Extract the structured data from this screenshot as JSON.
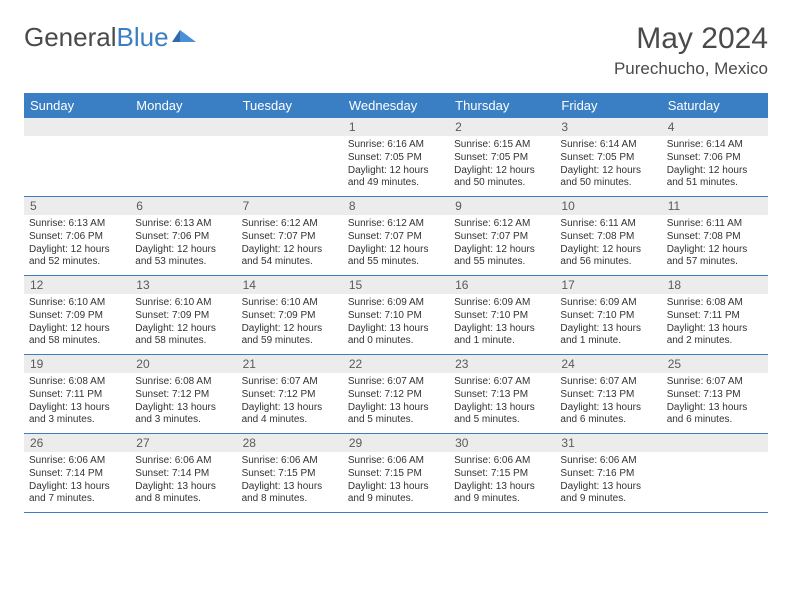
{
  "brand": {
    "part1": "General",
    "part2": "Blue"
  },
  "title": {
    "month": "May 2024",
    "location": "Purechucho, Mexico"
  },
  "colors": {
    "header_bg": "#3a7fc4",
    "header_fg": "#ffffff",
    "daynum_bg": "#ececec",
    "row_border": "#3a7fc4",
    "text": "#333333",
    "title_text": "#4a4a4a"
  },
  "weekdays": [
    "Sunday",
    "Monday",
    "Tuesday",
    "Wednesday",
    "Thursday",
    "Friday",
    "Saturday"
  ],
  "weeks": [
    [
      null,
      null,
      null,
      {
        "n": "1",
        "sr": "6:16 AM",
        "ss": "7:05 PM",
        "d1": "Daylight: 12 hours",
        "d2": "and 49 minutes."
      },
      {
        "n": "2",
        "sr": "6:15 AM",
        "ss": "7:05 PM",
        "d1": "Daylight: 12 hours",
        "d2": "and 50 minutes."
      },
      {
        "n": "3",
        "sr": "6:14 AM",
        "ss": "7:05 PM",
        "d1": "Daylight: 12 hours",
        "d2": "and 50 minutes."
      },
      {
        "n": "4",
        "sr": "6:14 AM",
        "ss": "7:06 PM",
        "d1": "Daylight: 12 hours",
        "d2": "and 51 minutes."
      }
    ],
    [
      {
        "n": "5",
        "sr": "6:13 AM",
        "ss": "7:06 PM",
        "d1": "Daylight: 12 hours",
        "d2": "and 52 minutes."
      },
      {
        "n": "6",
        "sr": "6:13 AM",
        "ss": "7:06 PM",
        "d1": "Daylight: 12 hours",
        "d2": "and 53 minutes."
      },
      {
        "n": "7",
        "sr": "6:12 AM",
        "ss": "7:07 PM",
        "d1": "Daylight: 12 hours",
        "d2": "and 54 minutes."
      },
      {
        "n": "8",
        "sr": "6:12 AM",
        "ss": "7:07 PM",
        "d1": "Daylight: 12 hours",
        "d2": "and 55 minutes."
      },
      {
        "n": "9",
        "sr": "6:12 AM",
        "ss": "7:07 PM",
        "d1": "Daylight: 12 hours",
        "d2": "and 55 minutes."
      },
      {
        "n": "10",
        "sr": "6:11 AM",
        "ss": "7:08 PM",
        "d1": "Daylight: 12 hours",
        "d2": "and 56 minutes."
      },
      {
        "n": "11",
        "sr": "6:11 AM",
        "ss": "7:08 PM",
        "d1": "Daylight: 12 hours",
        "d2": "and 57 minutes."
      }
    ],
    [
      {
        "n": "12",
        "sr": "6:10 AM",
        "ss": "7:09 PM",
        "d1": "Daylight: 12 hours",
        "d2": "and 58 minutes."
      },
      {
        "n": "13",
        "sr": "6:10 AM",
        "ss": "7:09 PM",
        "d1": "Daylight: 12 hours",
        "d2": "and 58 minutes."
      },
      {
        "n": "14",
        "sr": "6:10 AM",
        "ss": "7:09 PM",
        "d1": "Daylight: 12 hours",
        "d2": "and 59 minutes."
      },
      {
        "n": "15",
        "sr": "6:09 AM",
        "ss": "7:10 PM",
        "d1": "Daylight: 13 hours",
        "d2": "and 0 minutes."
      },
      {
        "n": "16",
        "sr": "6:09 AM",
        "ss": "7:10 PM",
        "d1": "Daylight: 13 hours",
        "d2": "and 1 minute."
      },
      {
        "n": "17",
        "sr": "6:09 AM",
        "ss": "7:10 PM",
        "d1": "Daylight: 13 hours",
        "d2": "and 1 minute."
      },
      {
        "n": "18",
        "sr": "6:08 AM",
        "ss": "7:11 PM",
        "d1": "Daylight: 13 hours",
        "d2": "and 2 minutes."
      }
    ],
    [
      {
        "n": "19",
        "sr": "6:08 AM",
        "ss": "7:11 PM",
        "d1": "Daylight: 13 hours",
        "d2": "and 3 minutes."
      },
      {
        "n": "20",
        "sr": "6:08 AM",
        "ss": "7:12 PM",
        "d1": "Daylight: 13 hours",
        "d2": "and 3 minutes."
      },
      {
        "n": "21",
        "sr": "6:07 AM",
        "ss": "7:12 PM",
        "d1": "Daylight: 13 hours",
        "d2": "and 4 minutes."
      },
      {
        "n": "22",
        "sr": "6:07 AM",
        "ss": "7:12 PM",
        "d1": "Daylight: 13 hours",
        "d2": "and 5 minutes."
      },
      {
        "n": "23",
        "sr": "6:07 AM",
        "ss": "7:13 PM",
        "d1": "Daylight: 13 hours",
        "d2": "and 5 minutes."
      },
      {
        "n": "24",
        "sr": "6:07 AM",
        "ss": "7:13 PM",
        "d1": "Daylight: 13 hours",
        "d2": "and 6 minutes."
      },
      {
        "n": "25",
        "sr": "6:07 AM",
        "ss": "7:13 PM",
        "d1": "Daylight: 13 hours",
        "d2": "and 6 minutes."
      }
    ],
    [
      {
        "n": "26",
        "sr": "6:06 AM",
        "ss": "7:14 PM",
        "d1": "Daylight: 13 hours",
        "d2": "and 7 minutes."
      },
      {
        "n": "27",
        "sr": "6:06 AM",
        "ss": "7:14 PM",
        "d1": "Daylight: 13 hours",
        "d2": "and 8 minutes."
      },
      {
        "n": "28",
        "sr": "6:06 AM",
        "ss": "7:15 PM",
        "d1": "Daylight: 13 hours",
        "d2": "and 8 minutes."
      },
      {
        "n": "29",
        "sr": "6:06 AM",
        "ss": "7:15 PM",
        "d1": "Daylight: 13 hours",
        "d2": "and 9 minutes."
      },
      {
        "n": "30",
        "sr": "6:06 AM",
        "ss": "7:15 PM",
        "d1": "Daylight: 13 hours",
        "d2": "and 9 minutes."
      },
      {
        "n": "31",
        "sr": "6:06 AM",
        "ss": "7:16 PM",
        "d1": "Daylight: 13 hours",
        "d2": "and 9 minutes."
      },
      null
    ]
  ],
  "labels": {
    "sunrise": "Sunrise:",
    "sunset": "Sunset:"
  }
}
